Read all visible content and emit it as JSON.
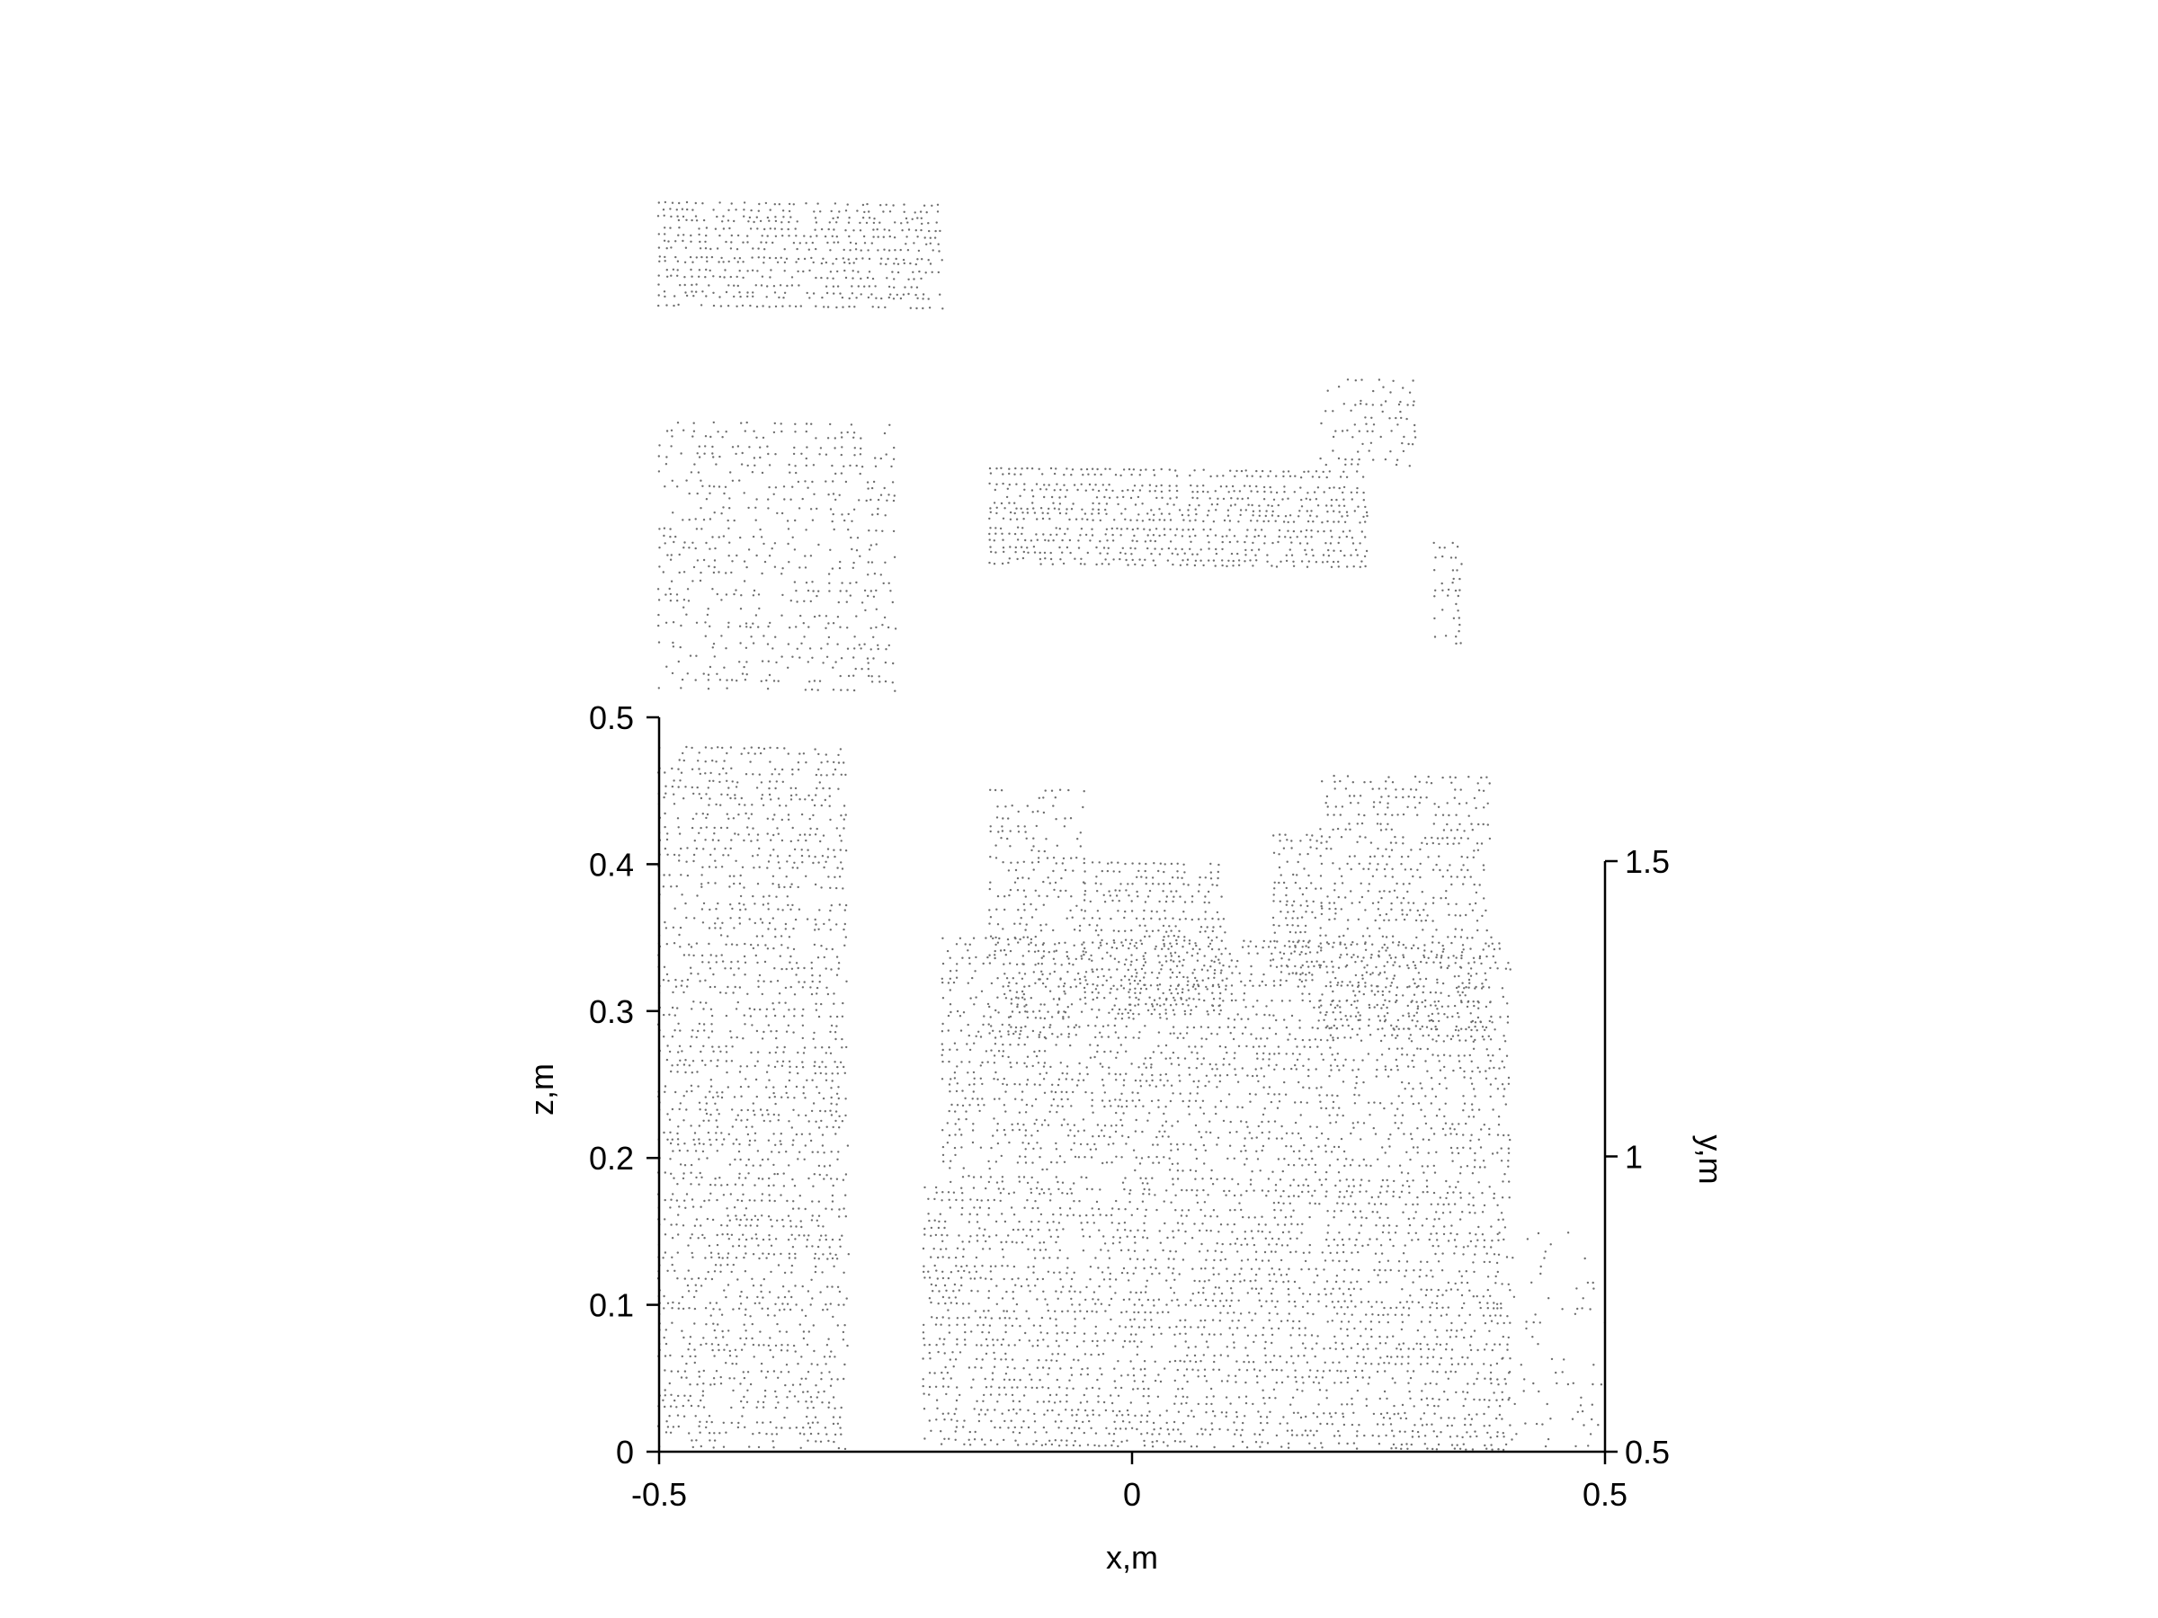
{
  "chart_data": {
    "type": "scatter",
    "description_kind": "3d-point-cloud",
    "marker_color": "#6e6e6e",
    "axis_color": "#000000",
    "axes": {
      "x": {
        "label": "x,m",
        "range": [
          -0.5,
          0.5
        ],
        "ticks": [
          -0.5,
          0,
          0.5
        ],
        "tick_labels": [
          "-0.5",
          "0",
          "0.5"
        ]
      },
      "z": {
        "label": "z,m",
        "range": [
          0,
          0.5
        ],
        "ticks": [
          0,
          0.1,
          0.2,
          0.3,
          0.4,
          0.5
        ],
        "tick_labels": [
          "0",
          "0.1",
          "0.2",
          "0.3",
          "0.4",
          "0.5"
        ]
      },
      "y": {
        "label": "y,m",
        "range": [
          0.5,
          1.5
        ],
        "ticks": [
          0.5,
          1,
          1.5
        ],
        "tick_labels": [
          "0.5",
          "1",
          "1.5"
        ]
      }
    },
    "clusters": [
      {
        "x": [
          -0.5,
          -0.3
        ],
        "z": [
          0.0,
          0.48
        ],
        "density": 0.5
      },
      {
        "x": [
          -0.22,
          0.4
        ],
        "z": [
          0.0,
          0.18
        ],
        "density": 0.55
      },
      {
        "x": [
          -0.2,
          0.4
        ],
        "z": [
          0.18,
          0.35
        ],
        "density": 0.45
      },
      {
        "x": [
          -0.05,
          0.1
        ],
        "z": [
          0.3,
          0.4
        ],
        "density": 0.6
      },
      {
        "x": [
          -0.15,
          -0.05
        ],
        "z": [
          0.28,
          0.45
        ],
        "density": 0.4
      },
      {
        "x": [
          0.15,
          0.2
        ],
        "z": [
          0.32,
          0.42
        ],
        "density": 0.6
      },
      {
        "x": [
          0.2,
          0.38
        ],
        "z": [
          0.28,
          0.46
        ],
        "density": 0.45
      },
      {
        "x": [
          0.38,
          0.5
        ],
        "z": [
          0.0,
          0.15
        ],
        "density": 0.15
      },
      {
        "x": [
          -0.5,
          -0.2
        ],
        "z": [
          0.78,
          0.85
        ],
        "density": 0.7
      },
      {
        "x": [
          -0.5,
          -0.25
        ],
        "z": [
          0.52,
          0.7
        ],
        "density": 0.35
      },
      {
        "x": [
          -0.15,
          0.25
        ],
        "z": [
          0.6,
          0.67
        ],
        "density": 0.7
      },
      {
        "x": [
          0.2,
          0.3
        ],
        "z": [
          0.67,
          0.73
        ],
        "density": 0.35
      },
      {
        "x": [
          0.32,
          0.35
        ],
        "z": [
          0.55,
          0.62
        ],
        "density": 0.4
      }
    ]
  }
}
